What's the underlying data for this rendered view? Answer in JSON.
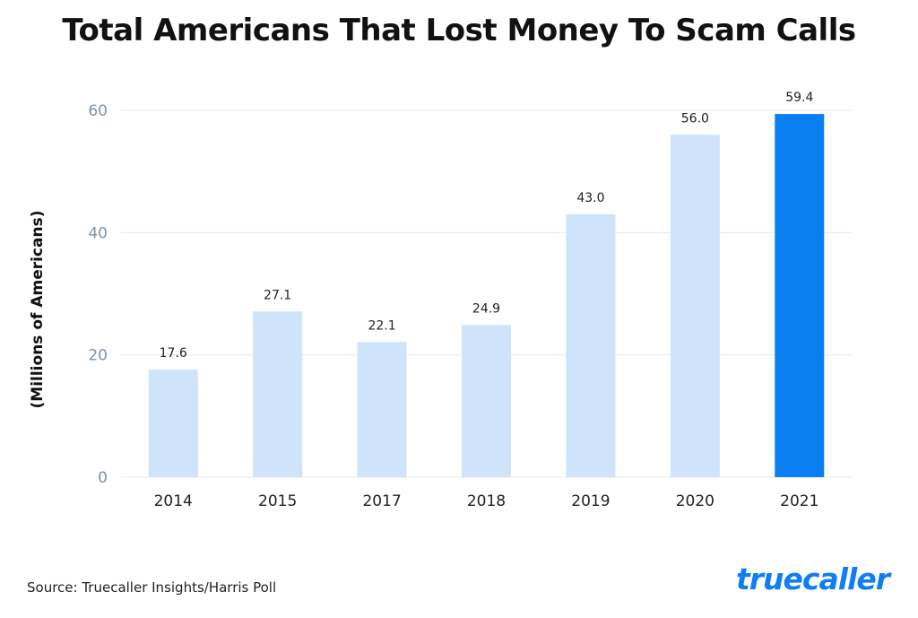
{
  "title": "Total Americans That Lost Money To Scam Calls",
  "source": "Source: Truecaller Insights/Harris Poll",
  "brand": "truecaller",
  "colors": {
    "bar": "#cfe3fb",
    "highlight_bar": "#0a7ff2",
    "grid": "#e6e9ec"
  },
  "chart_data": {
    "type": "bar",
    "categories": [
      "2014",
      "2015",
      "2017",
      "2018",
      "2019",
      "2020",
      "2021"
    ],
    "values": [
      17.6,
      27.1,
      22.1,
      24.9,
      43.0,
      56.0,
      59.4
    ],
    "value_labels": [
      "17.6",
      "27.1",
      "22.1",
      "24.9",
      "43.0",
      "56.0",
      "59.4"
    ],
    "highlight_category": "2021",
    "ylabel": "(Millions of Americans)",
    "xlabel": "",
    "ylim": [
      0,
      60
    ],
    "yticks": [
      0,
      20,
      40,
      60
    ],
    "grid": true
  }
}
